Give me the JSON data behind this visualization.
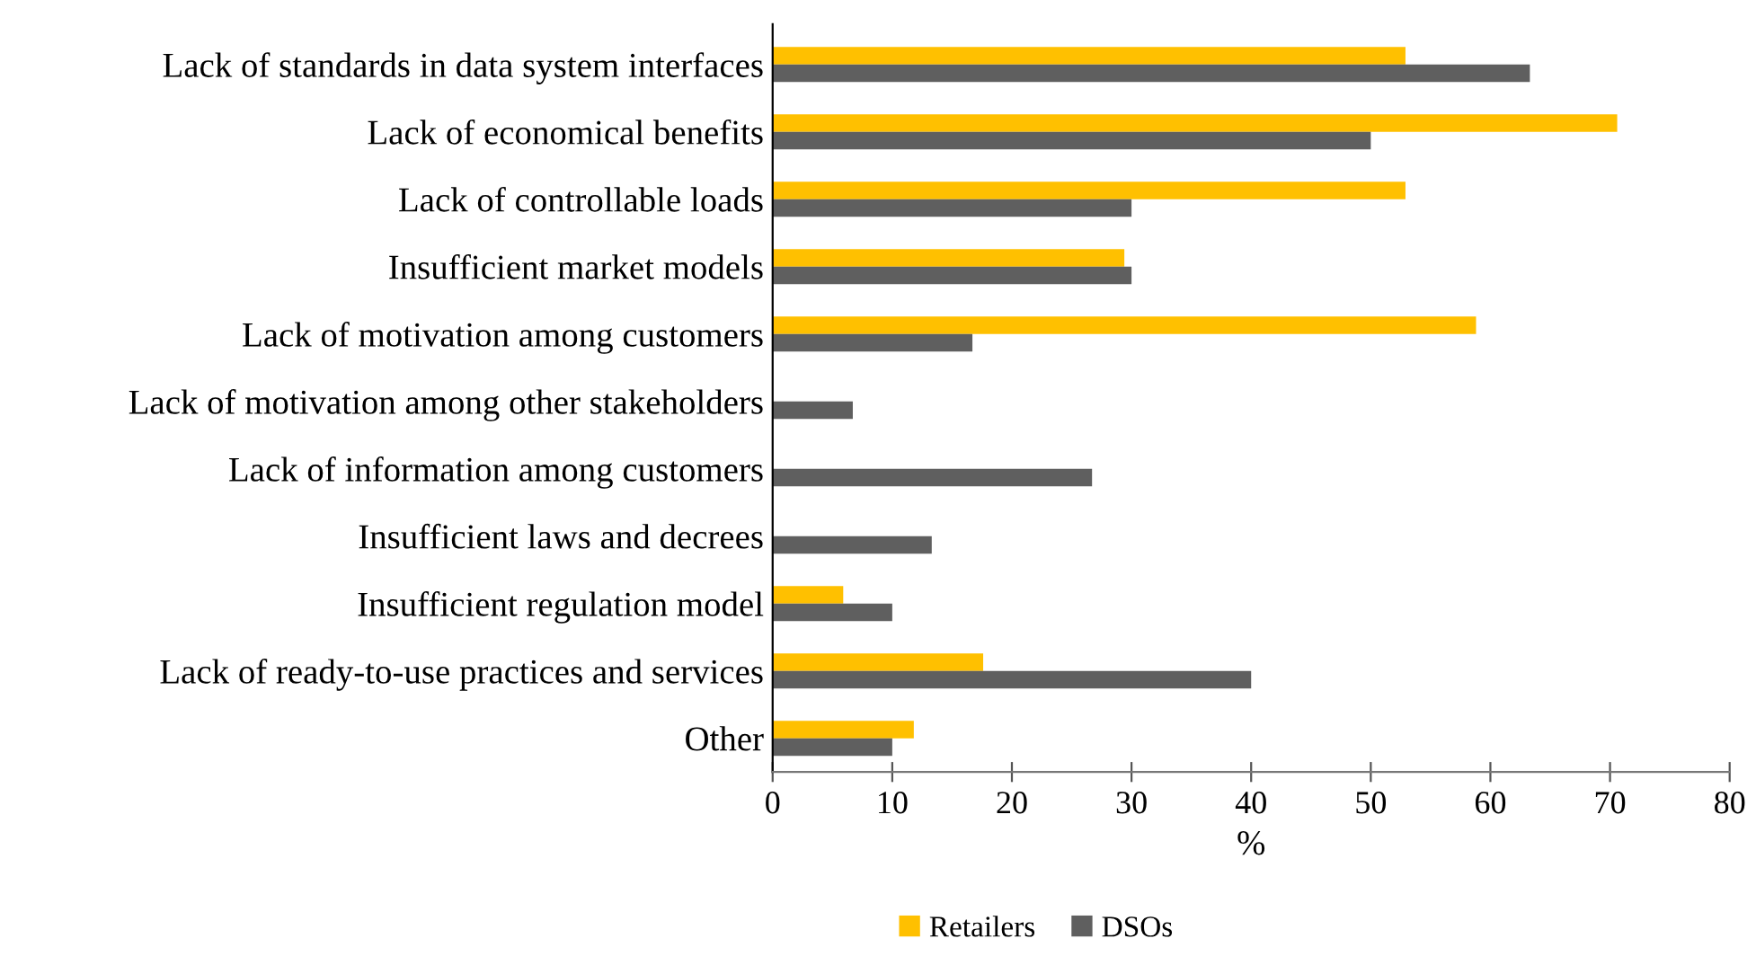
{
  "chart_data": {
    "type": "bar",
    "orientation": "horizontal",
    "xlabel": "%",
    "categories": [
      "Lack of standards in data system interfaces",
      "Lack of economical benefits",
      "Lack of controllable loads",
      "Insufficient market models",
      "Lack of motivation among customers",
      "Lack of motivation among other stakeholders",
      "Lack of information among customers",
      "Insufficient laws and decrees",
      "Insufficient regulation model",
      "Lack of ready-to-use practices and services",
      "Other"
    ],
    "series": [
      {
        "name": "Retailers",
        "color": "#ffc000",
        "values": [
          52.9,
          70.6,
          52.9,
          29.4,
          58.8,
          0,
          0,
          0,
          5.9,
          17.6,
          11.8
        ]
      },
      {
        "name": "DSOs",
        "color": "#5f5f5f",
        "values": [
          63.3,
          50,
          30,
          30,
          16.7,
          6.7,
          26.7,
          13.3,
          10,
          40,
          10
        ]
      }
    ],
    "xlim": [
      0,
      80
    ],
    "xticks": [
      0,
      10,
      20,
      30,
      40,
      50,
      60,
      70,
      80
    ],
    "grid": false,
    "legend": "bottom"
  }
}
